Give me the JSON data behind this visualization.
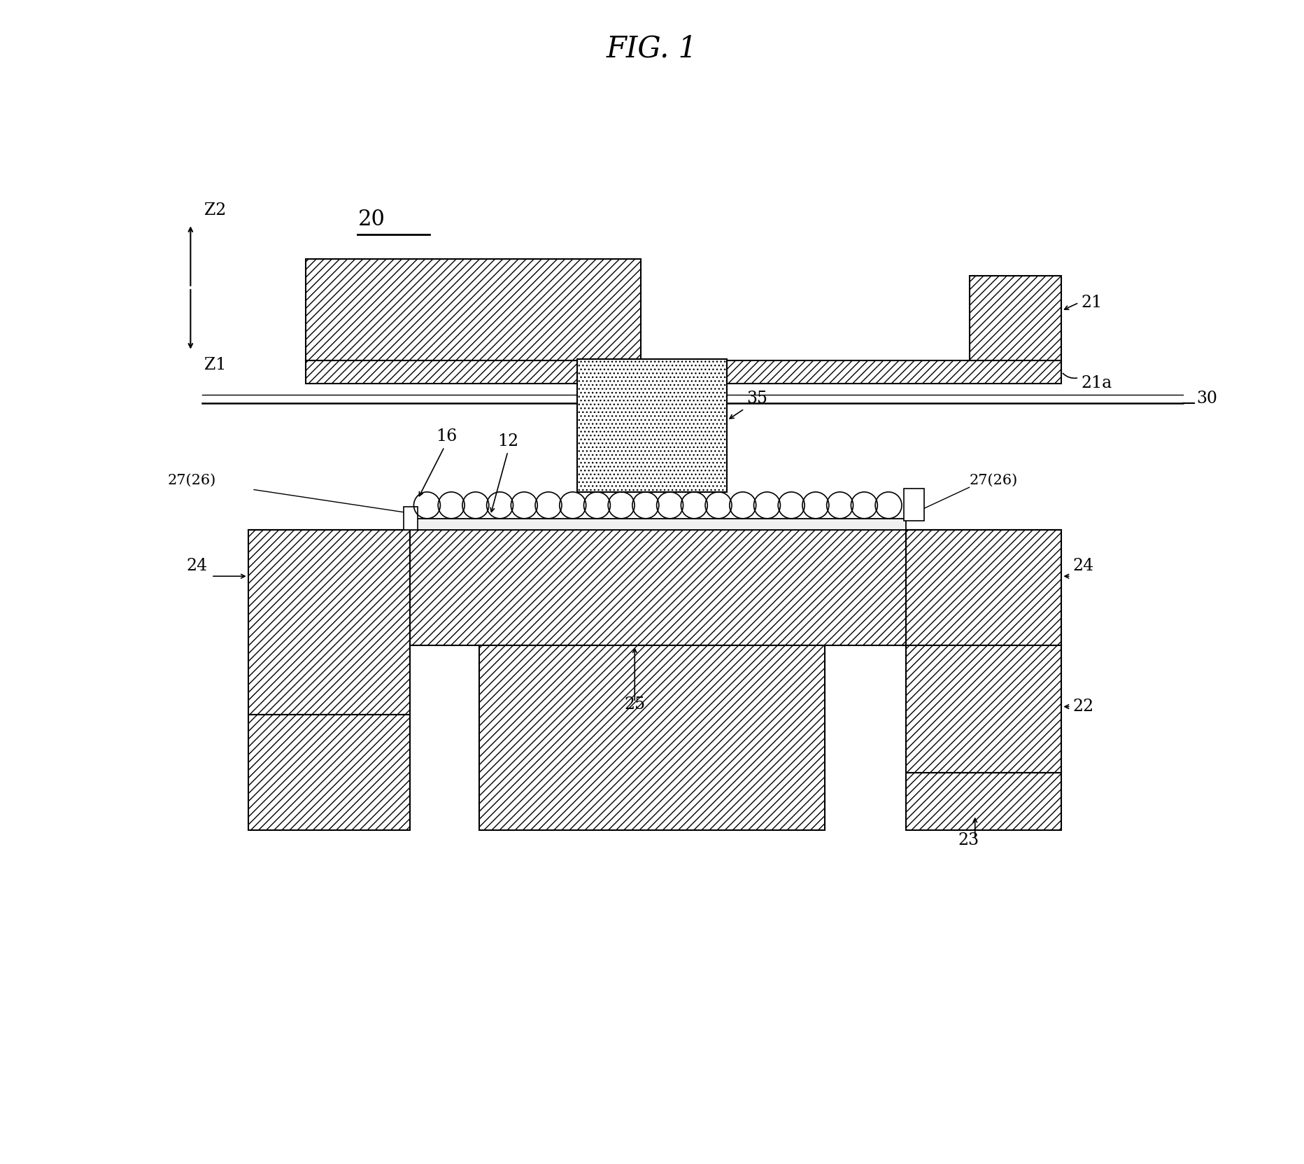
{
  "title": "FIG. 1",
  "background_color": "#ffffff",
  "fig_width": 18.64,
  "fig_height": 16.63,
  "label_20": "20",
  "label_21": "21",
  "label_21a": "21a",
  "label_30": "30",
  "label_16": "16",
  "label_12": "12",
  "label_35": "35",
  "label_27_26_left": "27(26)",
  "label_27_26_right": "27(26)",
  "label_24_left": "24",
  "label_24_right": "24",
  "label_25": "25",
  "label_22": "22",
  "label_23": "23",
  "label_z2": "Z2",
  "label_z1": "Z1"
}
